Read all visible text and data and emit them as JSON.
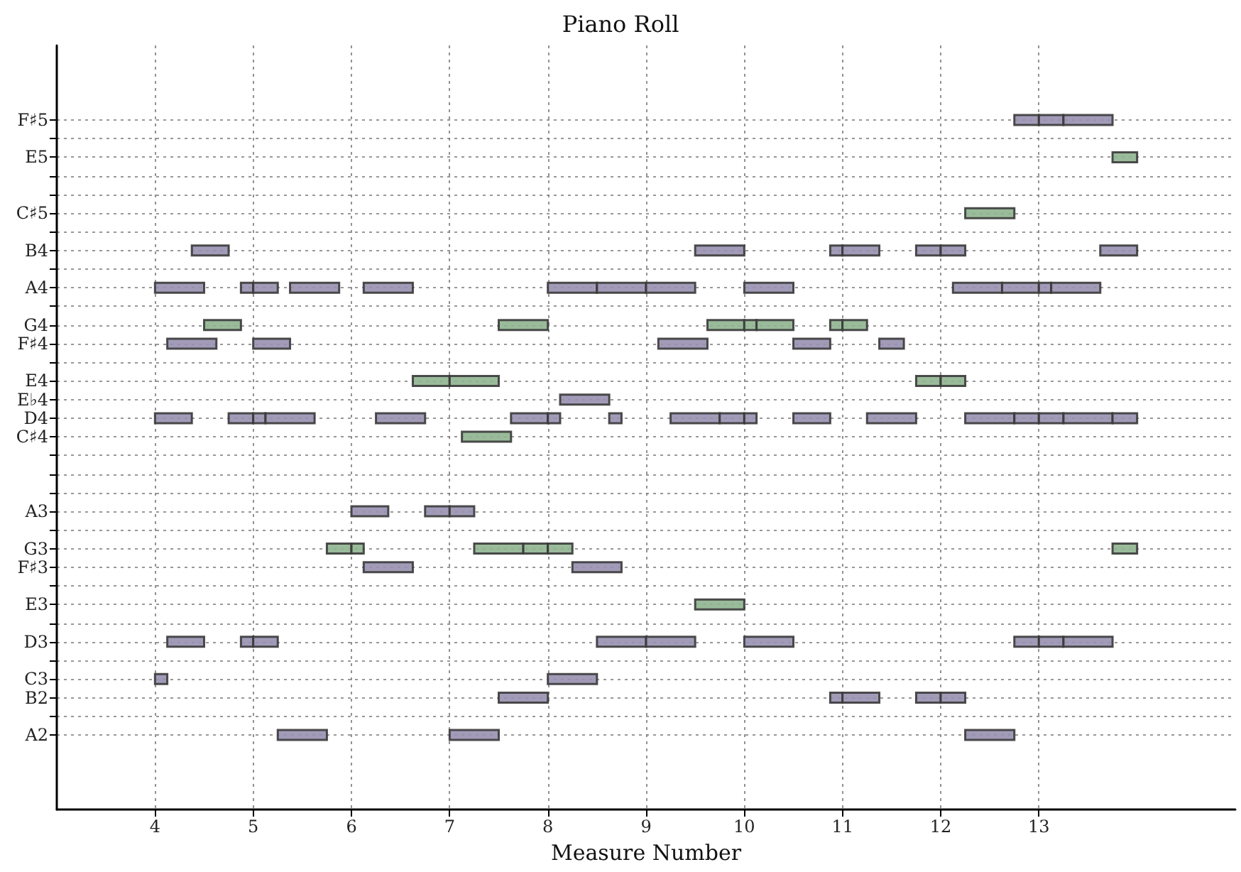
{
  "chart_data": {
    "type": "bar",
    "orientation": "horizontal",
    "title": "Piano Roll",
    "xlabel": "Measure Number",
    "categories": [
      "F♯5",
      null,
      "E5",
      null,
      null,
      "C♯5",
      null,
      "B4",
      null,
      "A4",
      null,
      "G4",
      "F♯4",
      null,
      "E4",
      "E♭4",
      "D4",
      "C♯4",
      null,
      null,
      null,
      "A3",
      null,
      "G3",
      "F♯3",
      null,
      "E3",
      null,
      "D3",
      null,
      "C3",
      "B2",
      null,
      "A2"
    ],
    "xlim": [
      3,
      15
    ],
    "xticks": [
      4,
      5,
      6,
      7,
      8,
      9,
      10,
      11,
      12,
      13
    ],
    "grid": true,
    "series": [
      {
        "color": "#9890b0",
        "base": [
          12.75,
          null,
          null,
          null,
          null,
          null,
          null,
          4.375,
          null,
          4,
          null,
          null,
          4.125,
          null,
          null,
          8.125,
          4,
          null,
          null,
          null,
          null,
          6,
          null,
          null,
          6.125,
          null,
          null,
          null,
          4.125,
          null,
          4,
          7.5,
          null,
          5.25
        ],
        "values": [
          0.25,
          null,
          null,
          null,
          null,
          null,
          null,
          0.375,
          null,
          0.5,
          null,
          null,
          0.5,
          null,
          null,
          0.5,
          0.375,
          null,
          null,
          null,
          null,
          0.375,
          null,
          null,
          0.5,
          null,
          null,
          null,
          0.375,
          null,
          0.125,
          0.5,
          null,
          0.5
        ]
      },
      {
        "color": "#9890b0",
        "base": [
          13,
          null,
          null,
          null,
          null,
          null,
          null,
          9.5,
          null,
          4.875,
          null,
          null,
          5,
          null,
          null,
          null,
          4.75,
          null,
          null,
          null,
          null,
          6.75,
          null,
          null,
          8.25,
          null,
          null,
          null,
          4.875,
          null,
          8,
          10.875,
          null,
          7
        ],
        "values": [
          0.25,
          null,
          null,
          null,
          null,
          null,
          null,
          0.5,
          null,
          0.125,
          null,
          null,
          0.375,
          null,
          null,
          null,
          0.25,
          null,
          null,
          null,
          null,
          0.25,
          null,
          null,
          0.5,
          null,
          null,
          null,
          0.125,
          null,
          0.5,
          0.125,
          null,
          0.5
        ]
      },
      {
        "color": "#9890b0",
        "base": [
          13.25,
          null,
          null,
          null,
          null,
          null,
          null,
          10.875,
          null,
          5,
          null,
          null,
          9.125,
          null,
          null,
          null,
          5,
          null,
          null,
          null,
          null,
          7,
          null,
          null,
          null,
          null,
          null,
          null,
          5,
          null,
          null,
          11,
          null,
          12.25
        ],
        "values": [
          0.5,
          null,
          null,
          null,
          null,
          null,
          null,
          0.125,
          null,
          0.25,
          null,
          null,
          0.5,
          null,
          null,
          null,
          0.125,
          null,
          null,
          null,
          null,
          0.25,
          null,
          null,
          null,
          null,
          null,
          null,
          0.25,
          null,
          null,
          0.375,
          null,
          0.5
        ]
      },
      {
        "color": "#9890b0",
        "base": [
          null,
          null,
          null,
          null,
          null,
          null,
          null,
          11,
          null,
          5.375,
          null,
          null,
          10.5,
          null,
          null,
          null,
          5.125,
          null,
          null,
          null,
          null,
          null,
          null,
          null,
          null,
          null,
          null,
          null,
          8.5,
          null,
          null,
          11.75,
          null,
          null
        ],
        "values": [
          null,
          null,
          null,
          null,
          null,
          null,
          null,
          0.375,
          null,
          0.5,
          null,
          null,
          0.375,
          null,
          null,
          null,
          0.5,
          null,
          null,
          null,
          null,
          null,
          null,
          null,
          null,
          null,
          null,
          null,
          0.5,
          null,
          null,
          0.25,
          null,
          null
        ]
      },
      {
        "color": "#9890b0",
        "base": [
          null,
          null,
          null,
          null,
          null,
          null,
          null,
          11.75,
          null,
          6.125,
          null,
          null,
          11.375,
          null,
          null,
          null,
          6.25,
          null,
          null,
          null,
          null,
          null,
          null,
          null,
          null,
          null,
          null,
          null,
          9,
          null,
          null,
          12,
          null,
          null
        ],
        "values": [
          null,
          null,
          null,
          null,
          null,
          null,
          null,
          0.25,
          null,
          0.5,
          null,
          null,
          0.25,
          null,
          null,
          null,
          0.5,
          null,
          null,
          null,
          null,
          null,
          null,
          null,
          null,
          null,
          null,
          null,
          0.5,
          null,
          null,
          0.25,
          null,
          null
        ]
      },
      {
        "color": "#9890b0",
        "base": [
          null,
          null,
          null,
          null,
          null,
          null,
          null,
          12,
          null,
          8,
          null,
          null,
          null,
          null,
          null,
          null,
          7.625,
          null,
          null,
          null,
          null,
          null,
          null,
          null,
          null,
          null,
          null,
          null,
          10,
          null,
          null,
          null,
          null,
          null
        ],
        "values": [
          null,
          null,
          null,
          null,
          null,
          null,
          null,
          0.25,
          null,
          0.5,
          null,
          null,
          null,
          null,
          null,
          null,
          0.375,
          null,
          null,
          null,
          null,
          null,
          null,
          null,
          null,
          null,
          null,
          null,
          0.5,
          null,
          null,
          null,
          null,
          null
        ]
      },
      {
        "color": "#9890b0",
        "base": [
          null,
          null,
          null,
          null,
          null,
          null,
          null,
          13.625,
          null,
          8.5,
          null,
          null,
          null,
          null,
          null,
          null,
          8,
          null,
          null,
          null,
          null,
          null,
          null,
          null,
          null,
          null,
          null,
          null,
          12.75,
          null,
          null,
          null,
          null,
          null
        ],
        "values": [
          null,
          null,
          null,
          null,
          null,
          null,
          null,
          0.375,
          null,
          0.5,
          null,
          null,
          null,
          null,
          null,
          null,
          0.125,
          null,
          null,
          null,
          null,
          null,
          null,
          null,
          null,
          null,
          null,
          null,
          0.25,
          null,
          null,
          null,
          null,
          null
        ]
      },
      {
        "color": "#9890b0",
        "base": [
          null,
          null,
          null,
          null,
          null,
          null,
          null,
          null,
          null,
          9,
          null,
          null,
          null,
          null,
          null,
          null,
          8.625,
          null,
          null,
          null,
          null,
          null,
          null,
          null,
          null,
          null,
          null,
          null,
          13,
          null,
          null,
          null,
          null,
          null
        ],
        "values": [
          null,
          null,
          null,
          null,
          null,
          null,
          null,
          null,
          null,
          0.5,
          null,
          null,
          null,
          null,
          null,
          null,
          0.125,
          null,
          null,
          null,
          null,
          null,
          null,
          null,
          null,
          null,
          null,
          null,
          0.25,
          null,
          null,
          null,
          null,
          null
        ]
      },
      {
        "color": "#9890b0",
        "base": [
          null,
          null,
          null,
          null,
          null,
          null,
          null,
          null,
          null,
          10,
          null,
          null,
          null,
          null,
          null,
          null,
          9.25,
          null,
          null,
          null,
          null,
          null,
          null,
          null,
          null,
          null,
          null,
          null,
          13.25,
          null,
          null,
          null,
          null,
          null
        ],
        "values": [
          null,
          null,
          null,
          null,
          null,
          null,
          null,
          null,
          null,
          0.5,
          null,
          null,
          null,
          null,
          null,
          null,
          0.5,
          null,
          null,
          null,
          null,
          null,
          null,
          null,
          null,
          null,
          null,
          null,
          0.5,
          null,
          null,
          null,
          null,
          null
        ]
      },
      {
        "color": "#9890b0",
        "base": [
          null,
          null,
          null,
          null,
          null,
          null,
          null,
          null,
          null,
          12.125,
          null,
          null,
          null,
          null,
          null,
          null,
          9.75,
          null,
          null,
          null,
          null,
          null,
          null,
          null,
          null,
          null,
          null,
          null,
          null,
          null,
          null,
          null,
          null,
          null
        ],
        "values": [
          null,
          null,
          null,
          null,
          null,
          null,
          null,
          null,
          null,
          0.5,
          null,
          null,
          null,
          null,
          null,
          null,
          0.25,
          null,
          null,
          null,
          null,
          null,
          null,
          null,
          null,
          null,
          null,
          null,
          null,
          null,
          null,
          null,
          null,
          null
        ]
      },
      {
        "color": "#9890b0",
        "base": [
          null,
          null,
          null,
          null,
          null,
          null,
          null,
          null,
          null,
          12.625,
          null,
          null,
          null,
          null,
          null,
          null,
          10,
          null,
          null,
          null,
          null,
          null,
          null,
          null,
          null,
          null,
          null,
          null,
          null,
          null,
          null,
          null,
          null,
          null
        ],
        "values": [
          null,
          null,
          null,
          null,
          null,
          null,
          null,
          null,
          null,
          0.375,
          null,
          null,
          null,
          null,
          null,
          null,
          0.125,
          null,
          null,
          null,
          null,
          null,
          null,
          null,
          null,
          null,
          null,
          null,
          null,
          null,
          null,
          null,
          null,
          null
        ]
      },
      {
        "color": "#9890b0",
        "base": [
          null,
          null,
          null,
          null,
          null,
          null,
          null,
          null,
          null,
          13,
          null,
          null,
          null,
          null,
          null,
          null,
          10.5,
          null,
          null,
          null,
          null,
          null,
          null,
          null,
          null,
          null,
          null,
          null,
          null,
          null,
          null,
          null,
          null,
          null
        ],
        "values": [
          null,
          null,
          null,
          null,
          null,
          null,
          null,
          null,
          null,
          0.125,
          null,
          null,
          null,
          null,
          null,
          null,
          0.375,
          null,
          null,
          null,
          null,
          null,
          null,
          null,
          null,
          null,
          null,
          null,
          null,
          null,
          null,
          null,
          null,
          null
        ]
      },
      {
        "color": "#9890b0",
        "base": [
          null,
          null,
          null,
          null,
          null,
          null,
          null,
          null,
          null,
          13.125,
          null,
          null,
          null,
          null,
          null,
          null,
          11.25,
          null,
          null,
          null,
          null,
          null,
          null,
          null,
          null,
          null,
          null,
          null,
          null,
          null,
          null,
          null,
          null,
          null
        ],
        "values": [
          null,
          null,
          null,
          null,
          null,
          null,
          null,
          null,
          null,
          0.5,
          null,
          null,
          null,
          null,
          null,
          null,
          0.5,
          null,
          null,
          null,
          null,
          null,
          null,
          null,
          null,
          null,
          null,
          null,
          null,
          null,
          null,
          null,
          null,
          null
        ]
      },
      {
        "color": "#9890b0",
        "base": [
          null,
          null,
          null,
          null,
          null,
          null,
          null,
          null,
          null,
          null,
          null,
          null,
          null,
          null,
          null,
          null,
          12.25,
          null,
          null,
          null,
          null,
          null,
          null,
          null,
          null,
          null,
          null,
          null,
          null,
          null,
          null,
          null,
          null,
          null
        ],
        "values": [
          null,
          null,
          null,
          null,
          null,
          null,
          null,
          null,
          null,
          null,
          null,
          null,
          null,
          null,
          null,
          null,
          0.5,
          null,
          null,
          null,
          null,
          null,
          null,
          null,
          null,
          null,
          null,
          null,
          null,
          null,
          null,
          null,
          null,
          null
        ]
      },
      {
        "color": "#9890b0",
        "base": [
          null,
          null,
          null,
          null,
          null,
          null,
          null,
          null,
          null,
          null,
          null,
          null,
          null,
          null,
          null,
          null,
          12.75,
          null,
          null,
          null,
          null,
          null,
          null,
          null,
          null,
          null,
          null,
          null,
          null,
          null,
          null,
          null,
          null,
          null
        ],
        "values": [
          null,
          null,
          null,
          null,
          null,
          null,
          null,
          null,
          null,
          null,
          null,
          null,
          null,
          null,
          null,
          null,
          0.25,
          null,
          null,
          null,
          null,
          null,
          null,
          null,
          null,
          null,
          null,
          null,
          null,
          null,
          null,
          null,
          null,
          null
        ]
      },
      {
        "color": "#9890b0",
        "base": [
          null,
          null,
          null,
          null,
          null,
          null,
          null,
          null,
          null,
          null,
          null,
          null,
          null,
          null,
          null,
          null,
          13,
          null,
          null,
          null,
          null,
          null,
          null,
          null,
          null,
          null,
          null,
          null,
          null,
          null,
          null,
          null,
          null,
          null
        ],
        "values": [
          null,
          null,
          null,
          null,
          null,
          null,
          null,
          null,
          null,
          null,
          null,
          null,
          null,
          null,
          null,
          null,
          0.25,
          null,
          null,
          null,
          null,
          null,
          null,
          null,
          null,
          null,
          null,
          null,
          null,
          null,
          null,
          null,
          null,
          null
        ]
      },
      {
        "color": "#9890b0",
        "base": [
          null,
          null,
          null,
          null,
          null,
          null,
          null,
          null,
          null,
          null,
          null,
          null,
          null,
          null,
          null,
          null,
          13.25,
          null,
          null,
          null,
          null,
          null,
          null,
          null,
          null,
          null,
          null,
          null,
          null,
          null,
          null,
          null,
          null,
          null
        ],
        "values": [
          null,
          null,
          null,
          null,
          null,
          null,
          null,
          null,
          null,
          null,
          null,
          null,
          null,
          null,
          null,
          null,
          0.5,
          null,
          null,
          null,
          null,
          null,
          null,
          null,
          null,
          null,
          null,
          null,
          null,
          null,
          null,
          null,
          null,
          null
        ]
      },
      {
        "color": "#9890b0",
        "base": [
          null,
          null,
          null,
          null,
          null,
          null,
          null,
          null,
          null,
          null,
          null,
          null,
          null,
          null,
          null,
          null,
          13.75,
          null,
          null,
          null,
          null,
          null,
          null,
          null,
          null,
          null,
          null,
          null,
          null,
          null,
          null,
          null,
          null,
          null
        ],
        "values": [
          null,
          null,
          null,
          null,
          null,
          null,
          null,
          null,
          null,
          null,
          null,
          null,
          null,
          null,
          null,
          null,
          0.25,
          null,
          null,
          null,
          null,
          null,
          null,
          null,
          null,
          null,
          null,
          null,
          null,
          null,
          null,
          null,
          null,
          null
        ]
      },
      {
        "color": "#8fb48f",
        "base": [
          null,
          null,
          13.75,
          null,
          null,
          12.25,
          null,
          null,
          null,
          null,
          null,
          4.5,
          null,
          null,
          6.625,
          null,
          null,
          7.125,
          null,
          null,
          null,
          null,
          null,
          5.75,
          null,
          null,
          9.5,
          null,
          null,
          null,
          null,
          null,
          null,
          null
        ],
        "values": [
          null,
          null,
          0.25,
          null,
          null,
          0.5,
          null,
          null,
          null,
          null,
          null,
          0.375,
          null,
          null,
          0.375,
          null,
          null,
          0.5,
          null,
          null,
          null,
          null,
          null,
          0.25,
          null,
          null,
          0.5,
          null,
          null,
          null,
          null,
          null,
          null,
          null
        ]
      },
      {
        "color": "#8fb48f",
        "base": [
          null,
          null,
          null,
          null,
          null,
          null,
          null,
          null,
          null,
          null,
          null,
          7.5,
          null,
          null,
          7,
          null,
          null,
          null,
          null,
          null,
          null,
          null,
          null,
          6,
          null,
          null,
          null,
          null,
          null,
          null,
          null,
          null,
          null,
          null
        ],
        "values": [
          null,
          null,
          null,
          null,
          null,
          null,
          null,
          null,
          null,
          null,
          null,
          0.5,
          null,
          null,
          0.5,
          null,
          null,
          null,
          null,
          null,
          null,
          null,
          null,
          0.125,
          null,
          null,
          null,
          null,
          null,
          null,
          null,
          null,
          null,
          null
        ]
      },
      {
        "color": "#8fb48f",
        "base": [
          null,
          null,
          null,
          null,
          null,
          null,
          null,
          null,
          null,
          null,
          null,
          9.625,
          null,
          null,
          11.75,
          null,
          null,
          null,
          null,
          null,
          null,
          null,
          null,
          7.25,
          null,
          null,
          null,
          null,
          null,
          null,
          null,
          null,
          null,
          null
        ],
        "values": [
          null,
          null,
          null,
          null,
          null,
          null,
          null,
          null,
          null,
          null,
          null,
          0.375,
          null,
          null,
          0.25,
          null,
          null,
          null,
          null,
          null,
          null,
          null,
          null,
          0.5,
          null,
          null,
          null,
          null,
          null,
          null,
          null,
          null,
          null,
          null
        ]
      },
      {
        "color": "#8fb48f",
        "base": [
          null,
          null,
          null,
          null,
          null,
          null,
          null,
          null,
          null,
          null,
          null,
          10,
          null,
          null,
          12,
          null,
          null,
          null,
          null,
          null,
          null,
          null,
          null,
          7.75,
          null,
          null,
          null,
          null,
          null,
          null,
          null,
          null,
          null,
          null
        ],
        "values": [
          null,
          null,
          null,
          null,
          null,
          null,
          null,
          null,
          null,
          null,
          null,
          0.125,
          null,
          null,
          0.25,
          null,
          null,
          null,
          null,
          null,
          null,
          null,
          null,
          0.25,
          null,
          null,
          null,
          null,
          null,
          null,
          null,
          null,
          null,
          null
        ]
      },
      {
        "color": "#8fb48f",
        "base": [
          null,
          null,
          null,
          null,
          null,
          null,
          null,
          null,
          null,
          null,
          null,
          10.125,
          null,
          null,
          null,
          null,
          null,
          null,
          null,
          null,
          null,
          null,
          null,
          8,
          null,
          null,
          null,
          null,
          null,
          null,
          null,
          null,
          null,
          null
        ],
        "values": [
          null,
          null,
          null,
          null,
          null,
          null,
          null,
          null,
          null,
          null,
          null,
          0.375,
          null,
          null,
          null,
          null,
          null,
          null,
          null,
          null,
          null,
          null,
          null,
          0.25,
          null,
          null,
          null,
          null,
          null,
          null,
          null,
          null,
          null,
          null
        ]
      },
      {
        "color": "#8fb48f",
        "base": [
          null,
          null,
          null,
          null,
          null,
          null,
          null,
          null,
          null,
          null,
          null,
          10.875,
          null,
          null,
          null,
          null,
          null,
          null,
          null,
          null,
          null,
          null,
          null,
          13.75,
          null,
          null,
          null,
          null,
          null,
          null,
          null,
          null,
          null,
          null
        ],
        "values": [
          null,
          null,
          null,
          null,
          null,
          null,
          null,
          null,
          null,
          null,
          null,
          0.125,
          null,
          null,
          null,
          null,
          null,
          null,
          null,
          null,
          null,
          null,
          null,
          0.25,
          null,
          null,
          null,
          null,
          null,
          null,
          null,
          null,
          null,
          null
        ]
      },
      {
        "color": "#8fb48f",
        "base": [
          null,
          null,
          null,
          null,
          null,
          null,
          null,
          null,
          null,
          null,
          null,
          11,
          null,
          null,
          null,
          null,
          null,
          null,
          null,
          null,
          null,
          null,
          null,
          null,
          null,
          null,
          null,
          null,
          null,
          null,
          null,
          null,
          null,
          null
        ],
        "values": [
          null,
          null,
          null,
          null,
          null,
          null,
          null,
          null,
          null,
          null,
          null,
          0.25,
          null,
          null,
          null,
          null,
          null,
          null,
          null,
          null,
          null,
          null,
          null,
          null,
          null,
          null,
          null,
          null,
          null,
          null,
          null,
          null,
          null,
          null
        ]
      }
    ]
  }
}
